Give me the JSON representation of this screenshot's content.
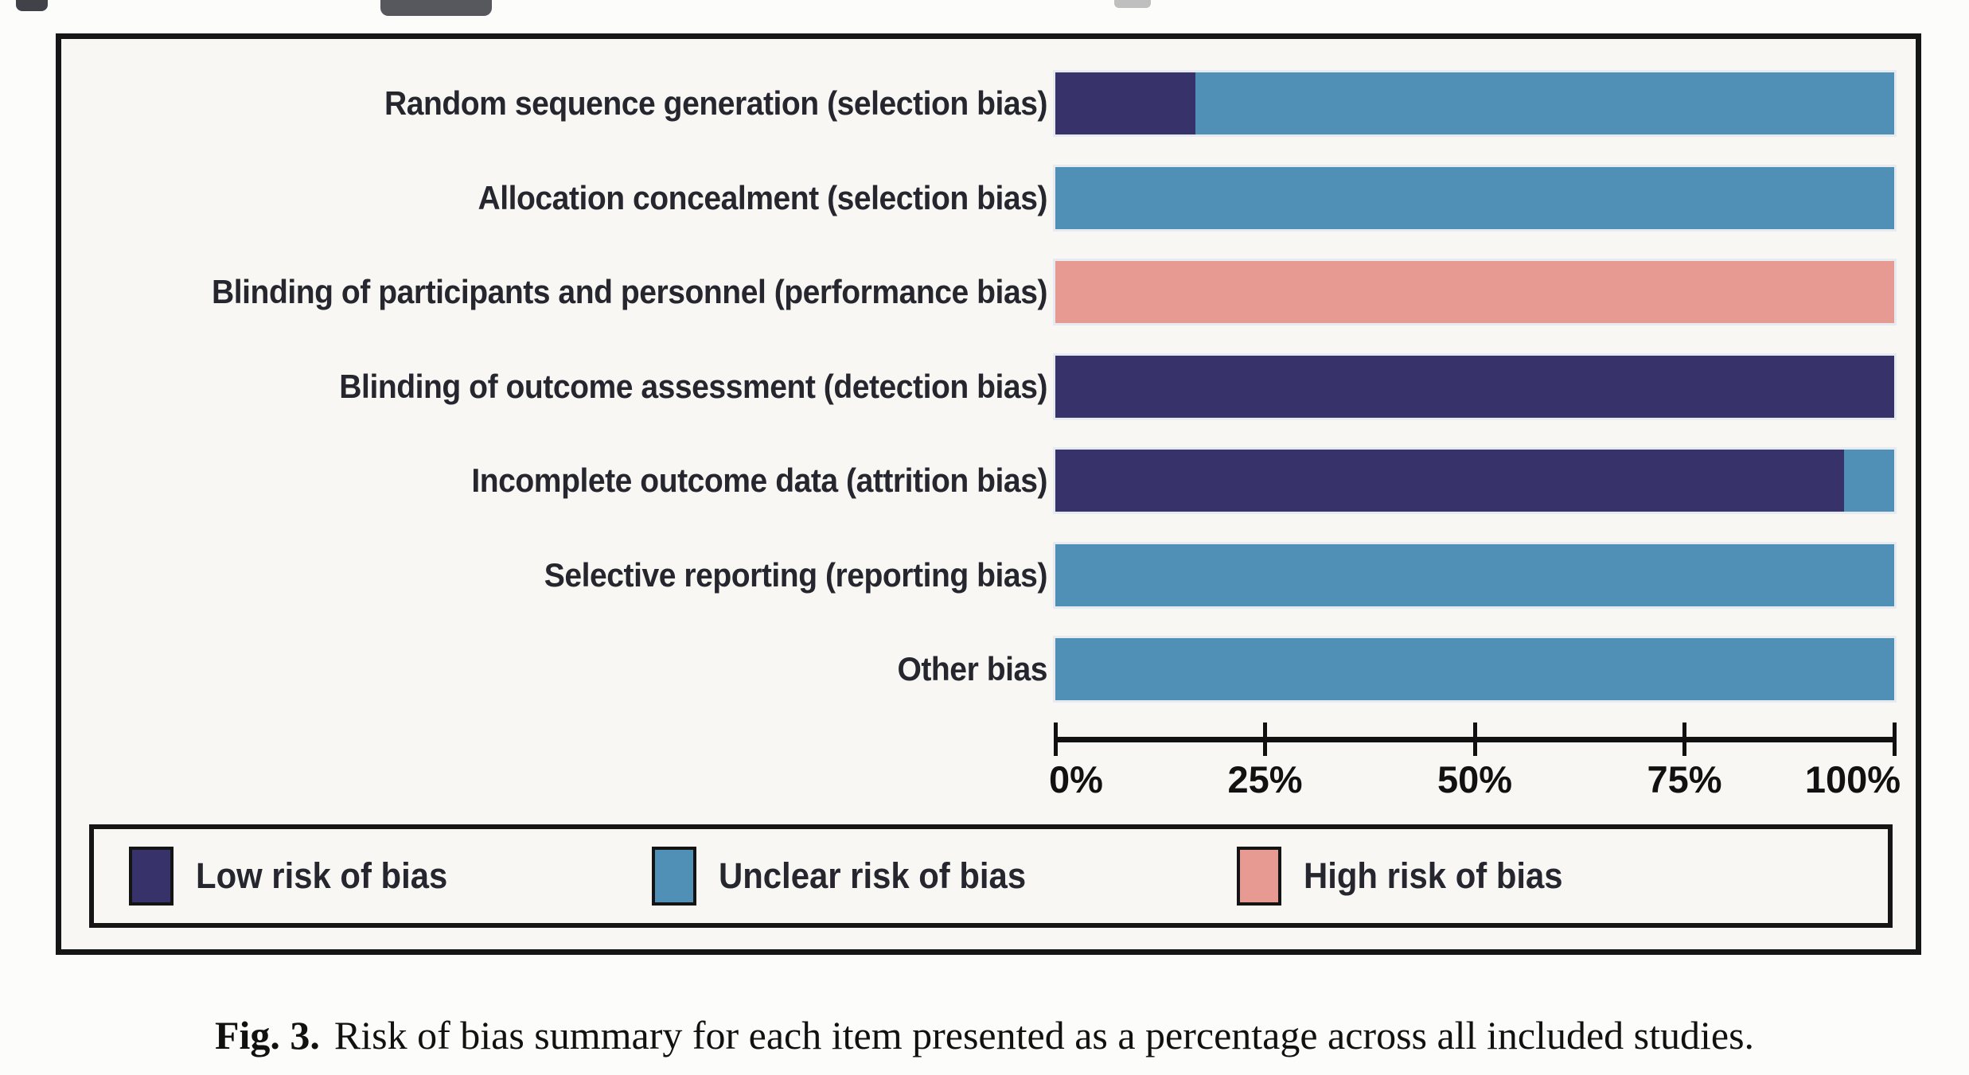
{
  "figure": {
    "caption_label": "Fig. 3.",
    "caption_text": "Risk of bias summary for each item presented as a percentage across all included studies."
  },
  "chart_data": {
    "type": "bar",
    "orientation": "horizontal",
    "stacked": true,
    "unit": "percent",
    "title": "",
    "xlabel": "",
    "ylabel": "",
    "grid": false,
    "legend_position": "bottom",
    "categories": [
      "Random sequence generation (selection bias)",
      "Allocation concealment (selection bias)",
      "Blinding of participants and personnel (performance bias)",
      "Blinding of outcome assessment (detection bias)",
      "Incomplete outcome data (attrition bias)",
      "Selective reporting (reporting bias)",
      "Other bias"
    ],
    "series": [
      {
        "name": "Low risk of bias",
        "color": "#37336a",
        "values": [
          16.7,
          0,
          0,
          100,
          94,
          0,
          0
        ]
      },
      {
        "name": "Unclear risk of bias",
        "color": "#5090b6",
        "values": [
          83.3,
          100,
          0,
          0,
          6,
          100,
          100
        ]
      },
      {
        "name": "High risk of bias",
        "color": "#e69a92",
        "values": [
          0,
          0,
          100,
          0,
          0,
          0,
          0
        ]
      }
    ],
    "x_axis": {
      "range": [
        0,
        100
      ],
      "ticks": [
        "0%",
        "25%",
        "50%",
        "75%",
        "100%"
      ]
    }
  }
}
